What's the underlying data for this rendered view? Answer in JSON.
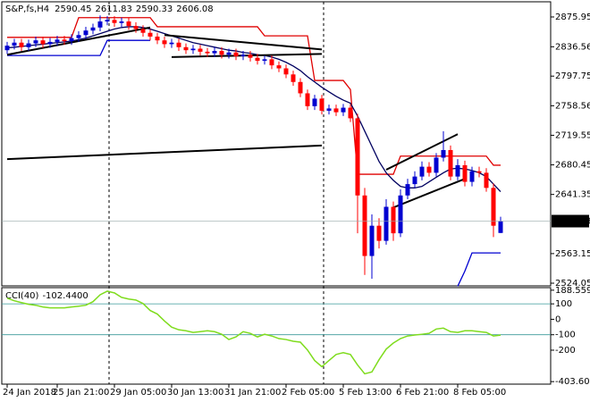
{
  "chart_data": {
    "type": "candlestick",
    "title": "S&P,fs,H4",
    "categories": [
      "24 Jan 2018",
      null,
      null,
      null,
      null,
      null,
      null,
      "25 Jan 21:00",
      null,
      null,
      null,
      null,
      null,
      null,
      null,
      "29 Jan 05:00",
      null,
      null,
      null,
      null,
      null,
      null,
      null,
      "30 Jan 13:00",
      null,
      null,
      null,
      null,
      null,
      null,
      null,
      "31 Jan 21:00",
      null,
      null,
      null,
      null,
      null,
      null,
      null,
      "2 Feb 05:00",
      null,
      null,
      null,
      null,
      null,
      null,
      null,
      "5 Feb 13:00",
      null,
      null,
      null,
      null,
      null,
      null,
      null,
      "6 Feb 21:00",
      null,
      null,
      null,
      null,
      null,
      null,
      null,
      "8 Feb 05:00",
      null,
      null,
      null,
      null,
      null,
      null
    ],
    "open": [
      2832,
      2838,
      2842,
      2836,
      2841,
      2845,
      2840,
      2843,
      2846,
      2844,
      2848,
      2852,
      2858,
      2862,
      2870,
      2872,
      2868,
      2870,
      2864,
      2860,
      2855,
      2850,
      2845,
      2840,
      2842,
      2836,
      2832,
      2834,
      2830,
      2828,
      2831,
      2826,
      2829,
      2824,
      2826,
      2822,
      2818,
      2820,
      2812,
      2808,
      2800,
      2790,
      2775,
      2758,
      2768,
      2752,
      2755,
      2750,
      2756,
      2742,
      2640,
      2560,
      2600,
      2580,
      2625,
      2590,
      2640,
      2655,
      2665,
      2678,
      2670,
      2690,
      2700,
      2665,
      2680,
      2658,
      2672,
      2670,
      2650,
      2590.45
    ],
    "high": [
      2843,
      2847,
      2847,
      2846,
      2850,
      2850,
      2848,
      2851,
      2851,
      2853,
      2857,
      2863,
      2867,
      2878,
      2877,
      2877,
      2875,
      2875,
      2869,
      2865,
      2860,
      2855,
      2850,
      2847,
      2847,
      2841,
      2839,
      2839,
      2835,
      2836,
      2836,
      2834,
      2834,
      2831,
      2831,
      2827,
      2825,
      2825,
      2817,
      2813,
      2805,
      2795,
      2780,
      2773,
      2773,
      2760,
      2760,
      2761,
      2761,
      2748,
      2650,
      2615,
      2610,
      2635,
      2632,
      2648,
      2662,
      2672,
      2685,
      2684,
      2696,
      2725,
      2706,
      2688,
      2686,
      2678,
      2678,
      2676,
      2656,
      2611.83
    ],
    "low": [
      2827,
      2833,
      2831,
      2831,
      2836,
      2835,
      2835,
      2838,
      2839,
      2839,
      2843,
      2847,
      2853,
      2857,
      2865,
      2863,
      2863,
      2859,
      2855,
      2850,
      2845,
      2840,
      2835,
      2835,
      2831,
      2827,
      2827,
      2825,
      2823,
      2823,
      2821,
      2821,
      2819,
      2819,
      2817,
      2813,
      2813,
      2807,
      2803,
      2795,
      2785,
      2770,
      2753,
      2753,
      2747,
      2747,
      2745,
      2745,
      2737,
      2590,
      2535,
      2530,
      2570,
      2575,
      2580,
      2585,
      2635,
      2650,
      2660,
      2665,
      2665,
      2685,
      2660,
      2660,
      2652,
      2652,
      2664,
      2645,
      2585,
      2590.33
    ],
    "close": [
      2838,
      2842,
      2836,
      2841,
      2845,
      2840,
      2843,
      2846,
      2844,
      2848,
      2852,
      2858,
      2862,
      2870,
      2872,
      2868,
      2870,
      2864,
      2860,
      2855,
      2850,
      2845,
      2840,
      2842,
      2836,
      2832,
      2834,
      2830,
      2828,
      2831,
      2826,
      2829,
      2824,
      2826,
      2822,
      2818,
      2820,
      2812,
      2808,
      2800,
      2790,
      2775,
      2758,
      2768,
      2752,
      2755,
      2750,
      2756,
      2742,
      2640,
      2560,
      2600,
      2580,
      2625,
      2590,
      2640,
      2655,
      2665,
      2678,
      2670,
      2690,
      2700,
      2665,
      2680,
      2658,
      2672,
      2670,
      2650,
      2600,
      2606.08
    ],
    "up_color": "#0000d0",
    "down_color": "#ff0000",
    "ylim": [
      2520.5,
      2896
    ],
    "yticks": [
      2875.95,
      2836.56,
      2797.75,
      2758.56,
      2719.55,
      2680.45,
      2641.35,
      2563.15,
      2524.05
    ],
    "overlays": [
      {
        "color": "#e00000",
        "values": [
          2849,
          2849,
          2849,
          2849,
          2849,
          2849,
          2849,
          2849,
          2849,
          2849,
          2875,
          2875,
          2875,
          2875,
          2875,
          2875,
          2875,
          2875,
          2875,
          2875,
          2875,
          2863,
          2863,
          2863,
          2863,
          2863,
          2863,
          2863,
          2863,
          2863,
          2863,
          2863,
          2863,
          2863,
          2863,
          2863,
          2851,
          2851,
          2851,
          2851,
          2851,
          2851,
          2851,
          2792,
          2792,
          2792,
          2792,
          2792,
          2780,
          2668,
          2668,
          2668,
          2668,
          2668,
          2668,
          2692,
          2692,
          2692,
          2692,
          2692,
          2692,
          2692,
          2692,
          2692,
          2692,
          2692,
          2692,
          2692,
          2680,
          2680
        ]
      },
      {
        "color": "#0000d0",
        "values": [
          2825,
          2825,
          2825,
          2825,
          2825,
          2825,
          2825,
          2825,
          2825,
          2825,
          2825,
          2825,
          2825,
          2825,
          2845,
          2845,
          2845,
          2845,
          2845,
          2845,
          2845,
          null,
          null,
          null,
          null,
          null,
          null,
          null,
          null,
          null,
          null,
          null,
          null,
          null,
          null,
          null,
          null,
          null,
          null,
          null,
          null,
          null,
          null,
          null,
          null,
          null,
          null,
          null,
          null,
          null,
          null,
          null,
          null,
          null,
          null,
          null,
          null,
          null,
          null,
          null,
          null,
          null,
          null,
          2520,
          2540,
          2564,
          2564,
          2564,
          2564,
          2564
        ]
      },
      {
        "color": "#000060",
        "values": [
          2835,
          2836,
          2837,
          2838,
          2839,
          2840,
          2841,
          2842,
          2843,
          2844,
          2846,
          2848,
          2851,
          2854,
          2857,
          2860,
          2862,
          2863,
          2863,
          2862,
          2860,
          2857,
          2854,
          2851,
          2848,
          2845,
          2842,
          2840,
          2838,
          2836,
          2834,
          2832,
          2831,
          2829,
          2828,
          2826,
          2825,
          2823,
          2820,
          2816,
          2811,
          2805,
          2797,
          2790,
          2783,
          2777,
          2771,
          2766,
          2762,
          2745,
          2725,
          2705,
          2685,
          2670,
          2660,
          2652,
          2650,
          2650,
          2652,
          2658,
          2664,
          2670,
          2675,
          2676,
          2675,
          2673,
          2670,
          2665,
          2655,
          2645
        ]
      }
    ],
    "trendlines": [
      {
        "x": [
          0,
          20
        ],
        "y": [
          2826,
          2862
        ]
      },
      {
        "x": [
          23,
          44
        ],
        "y": [
          2823,
          2827
        ]
      },
      {
        "x": [
          22,
          44
        ],
        "y": [
          2852,
          2833
        ]
      },
      {
        "x": [
          0,
          44
        ],
        "y": [
          2688,
          2706
        ]
      },
      {
        "x": [
          53,
          63
        ],
        "y": [
          2674,
          2721
        ]
      },
      {
        "x": [
          54,
          64
        ],
        "y": [
          2624,
          2662
        ]
      }
    ],
    "indicator": {
      "name": "CCI(40)",
      "color": "#7fdc1e",
      "level_color": "#3a9a9a",
      "values": [
        137,
        120,
        108,
        97,
        91,
        80,
        74,
        74,
        74,
        80,
        85,
        91,
        114,
        159,
        182,
        171,
        142,
        131,
        125,
        102,
        57,
        34,
        -11,
        -51,
        -68,
        -74,
        -85,
        -80,
        -74,
        -80,
        -97,
        -131,
        -114,
        -80,
        -91,
        -114,
        -97,
        -108,
        -125,
        -131,
        -142,
        -148,
        -199,
        -267,
        -307,
        -267,
        -228,
        -216,
        -228,
        -296,
        -353,
        -341,
        -262,
        -193,
        -154,
        -125,
        -108,
        -102,
        -97,
        -91,
        -63,
        -57,
        -80,
        -85,
        -74,
        -74,
        -80,
        -85,
        -108,
        -102.44
      ],
      "value_labels": [
        null,
        null,
        null,
        null,
        null,
        null,
        null,
        null,
        null,
        null,
        null,
        null,
        null,
        null,
        null,
        null,
        null,
        null,
        null,
        null,
        null,
        null,
        null,
        null,
        null,
        null,
        null,
        null,
        null,
        null,
        null,
        null,
        null,
        null,
        null,
        null,
        null,
        null,
        null,
        null,
        null,
        null,
        null,
        null,
        null,
        null,
        null,
        null,
        null,
        null,
        null,
        null,
        null,
        null,
        null,
        null,
        null,
        null,
        null,
        null,
        null,
        null,
        null,
        null,
        null,
        null,
        null,
        null,
        null,
        "-102.4400"
      ],
      "ylim": [
        -420,
        205
      ],
      "yticks": [
        188.5593,
        100,
        0,
        -100,
        -200,
        -403.6083
      ],
      "levels": [
        100,
        -100
      ]
    }
  }
}
